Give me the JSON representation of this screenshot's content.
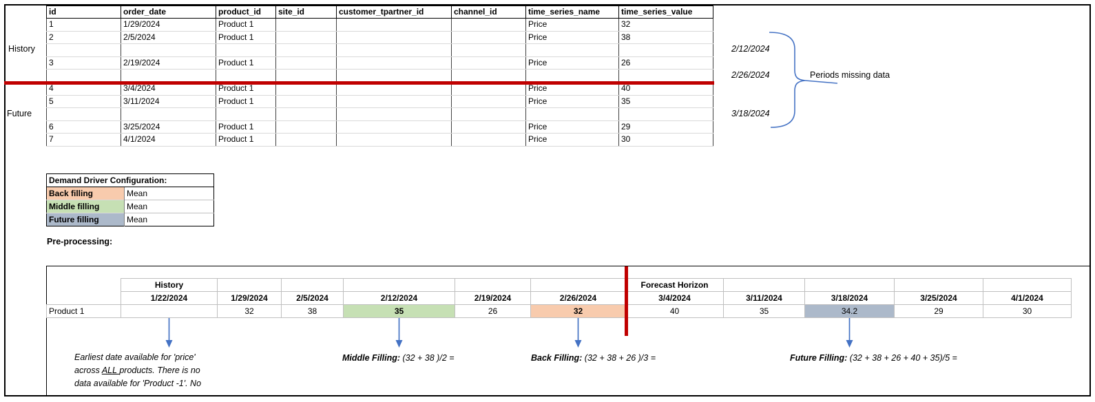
{
  "top_table": {
    "headers": [
      "id",
      "order_date",
      "product_id",
      "site_id",
      "customer_tpartner_id",
      "channel_id",
      "time_series_name",
      "time_series_value"
    ],
    "rows": [
      [
        "1",
        "1/29/2024",
        "Product 1",
        "",
        "",
        "",
        "Price",
        "32"
      ],
      [
        "2",
        "2/5/2024",
        "Product 1",
        "",
        "",
        "",
        "Price",
        "38"
      ],
      [
        "",
        "",
        "",
        "",
        "",
        "",
        "",
        ""
      ],
      [
        "3",
        "2/19/2024",
        "Product 1",
        "",
        "",
        "",
        "Price",
        "26"
      ],
      [
        "",
        "",
        "",
        "",
        "",
        "",
        "",
        ""
      ],
      [
        "4",
        "3/4/2024",
        "Product 1",
        "",
        "",
        "",
        "Price",
        "40"
      ],
      [
        "5",
        "3/11/2024",
        "Product 1",
        "",
        "",
        "",
        "Price",
        "35"
      ],
      [
        "",
        "",
        "",
        "",
        "",
        "",
        "",
        ""
      ],
      [
        "6",
        "3/25/2024",
        "Product 1",
        "",
        "",
        "",
        "Price",
        "29"
      ],
      [
        "7",
        "4/1/2024",
        "Product 1",
        "",
        "",
        "",
        "Price",
        "30"
      ]
    ]
  },
  "side_labels": {
    "history": "History",
    "future": "Future"
  },
  "missing_periods": {
    "dates": [
      "2/12/2024",
      "2/26/2024",
      "3/18/2024"
    ],
    "label": "Periods missing data"
  },
  "config": {
    "title": "Demand Driver Configuration:",
    "rows": [
      {
        "label": "Back filling",
        "value": "Mean",
        "color": "#F8CBAD"
      },
      {
        "label": "Middle filling",
        "value": "Mean",
        "color": "#C6E0B4"
      },
      {
        "label": "Future filling",
        "value": "Mean",
        "color": "#ACB9CA"
      }
    ]
  },
  "preprocessing": {
    "title": "Pre-processing:",
    "group_headers": {
      "history": "History",
      "forecast": "Forecast Horizon"
    },
    "columns": [
      "1/22/2024",
      "1/29/2024",
      "2/5/2024",
      "2/12/2024",
      "2/19/2024",
      "2/26/2024",
      "3/4/2024",
      "3/11/2024",
      "3/18/2024",
      "3/25/2024",
      "4/1/2024"
    ],
    "row_label": "Product 1",
    "values": [
      "",
      "32",
      "38",
      "35",
      "26",
      "32",
      "40",
      "35",
      "34.2",
      "29",
      "30"
    ]
  },
  "notes": {
    "earliest": {
      "line1": "Earliest date available for 'price'",
      "line2_pre": "across ",
      "line2_underlined": "ALL ",
      "line2_post": "products. There is no",
      "line3": "data available for 'Product -1'. No"
    },
    "middle": {
      "label": "Middle Filling:",
      "formula": " (32 + 38 )/2 ="
    },
    "back": {
      "label": "Back Filling:",
      "formula": " (32 + 38 + 26 )/3 ="
    },
    "future": {
      "label": "Future Filling:",
      "formula": " (32 + 38 + 26 + 40 + 35)/5 ="
    }
  },
  "colors": {
    "red_line": "#C00000",
    "annotation_blue": "#4472C4",
    "back_fill": "#F8CBAD",
    "middle_fill": "#C6E0B4",
    "future_fill": "#ACB9CA"
  }
}
